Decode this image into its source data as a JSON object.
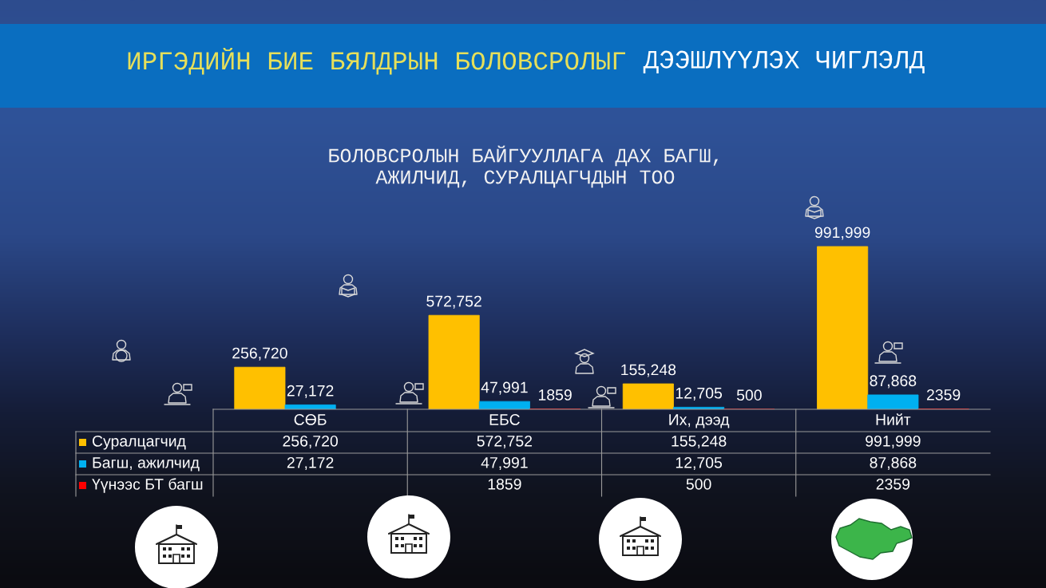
{
  "chart_data": {
    "type": "bar",
    "title": "ИРГЭДИЙН БИЕ БЯЛДРЫН БОЛОВСРОЛЫГ ДЭЭШЛҮҮЛЭХ ЧИГЛЭЛД",
    "subtitle": "БОЛОВСРОЛЫН БАЙГУУЛЛАГА ДАХ БАГШ,\nАЖИЛЧИД, СУРАЛЦАГЧДЫН ТОО",
    "categories": [
      "СӨБ",
      "ЕБС",
      "Их, дээд",
      "Нийт"
    ],
    "series": [
      {
        "name": "Суралцагчид",
        "color": "#ffc000",
        "values": [
          256720,
          572752,
          155248,
          991999
        ],
        "value_labels": [
          "256,720",
          "572,752",
          "155,248",
          "991,999"
        ]
      },
      {
        "name": "Багш, ажилчид",
        "color": "#00b0f0",
        "values": [
          27172,
          47991,
          12705,
          87868
        ],
        "value_labels": [
          "27,172",
          "47,991",
          "12,705",
          "87,868"
        ]
      },
      {
        "name": "Үүнээс БТ багш",
        "color": "#ff0000",
        "values": [
          null,
          1859,
          500,
          2359
        ],
        "value_labels": [
          null,
          "1859",
          "500",
          "2359"
        ]
      }
    ],
    "legend": "bottom"
  }
}
